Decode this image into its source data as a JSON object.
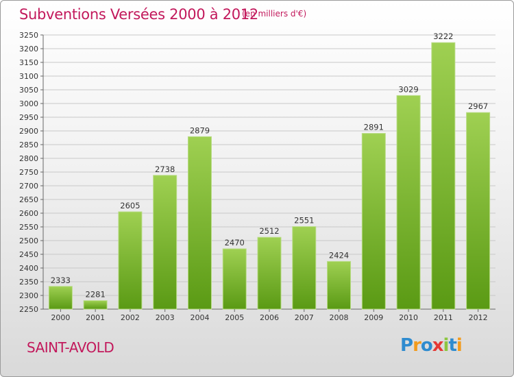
{
  "header": {
    "title": "Subventions Versées 2000 à 2012",
    "subtitle": "(en milliers d'€)"
  },
  "footer": {
    "city": "SAINT-AVOLD",
    "logo_text": "Proxiti",
    "logo_letters": [
      {
        "char": "P",
        "color": "#2e8bcf"
      },
      {
        "char": "r",
        "color": "#f29b1d"
      },
      {
        "char": "o",
        "color": "#2e8bcf"
      },
      {
        "char": "x",
        "color": "#e53935"
      },
      {
        "char": "i",
        "color": "#8cc63f"
      },
      {
        "char": "t",
        "color": "#2e8bcf"
      },
      {
        "char": "i",
        "color": "#f29b1d"
      }
    ]
  },
  "colors": {
    "accent": "#c2185b",
    "bar_top": "#9fd052",
    "bar_bottom": "#5a9a14",
    "grid": "#c8c8c8"
  },
  "chart_data": {
    "type": "bar",
    "title": "Subventions Versées 2000 à 2012",
    "subtitle": "(en milliers d'€)",
    "xlabel": "",
    "ylabel": "",
    "categories": [
      "2000",
      "2001",
      "2002",
      "2003",
      "2004",
      "2005",
      "2006",
      "2007",
      "2008",
      "2009",
      "2010",
      "2011",
      "2012"
    ],
    "values": [
      2333,
      2281,
      2605,
      2738,
      2879,
      2470,
      2512,
      2551,
      2424,
      2891,
      3029,
      3222,
      2967
    ],
    "value_labels": [
      "2333",
      "2281",
      "2605",
      "2738",
      "2879",
      "2470",
      "2512",
      "2551",
      "2424",
      "2891",
      "3029",
      "3222",
      "2967"
    ],
    "ylim": [
      2250,
      3250
    ],
    "yticks": [
      "2250",
      "2300",
      "2350",
      "2400",
      "2450",
      "2500",
      "2550",
      "2600",
      "2650",
      "2700",
      "2750",
      "2800",
      "2850",
      "2900",
      "2950",
      "3000",
      "3050",
      "3100",
      "3150",
      "3200",
      "3250"
    ],
    "grid": true,
    "legend": "none"
  }
}
